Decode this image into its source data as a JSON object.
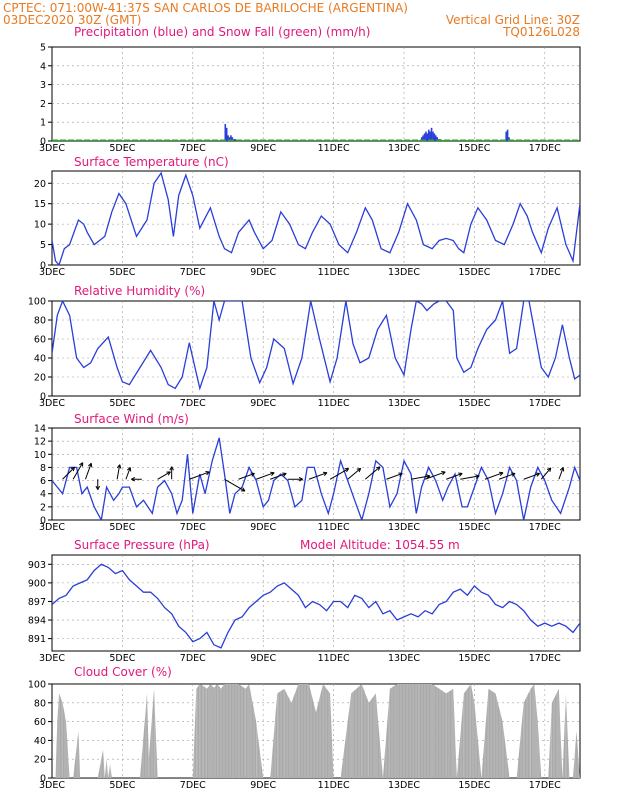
{
  "header": {
    "line1_left": "CPTEC:   071:00W-41:37S   SAN CARLOS DE BARILOCHE (ARGENTINA)",
    "line2_left": "03DEC2020 30Z (GMT)",
    "line2_right": "Vertical Grid Line: 30Z",
    "line3_right": "TQ0126L028"
  },
  "colors": {
    "header": "#e87a22",
    "panel_title": "#e0187a",
    "line": "#2a3ed8",
    "snow": "#22aa22",
    "cloud": "#aaaaaa",
    "grid": "#999999"
  },
  "x_axis": {
    "labels": [
      "3DEC",
      "5DEC",
      "7DEC",
      "9DEC",
      "11DEC",
      "13DEC",
      "15DEC",
      "17DEC"
    ],
    "start_day": 3,
    "end_day": 18
  },
  "chart_data": [
    {
      "type": "bar",
      "title": "Precipitation (blue) and Snow Fall (green) (mm/h)",
      "ylim": [
        0,
        5
      ],
      "yticks": [
        0,
        1,
        2,
        3,
        4,
        5
      ],
      "series": [
        {
          "name": "Precipitation (blue)",
          "color": "#2a3ed8",
          "x": [
            7.92,
            7.96,
            8.0,
            8.04,
            8.08,
            8.12,
            8.16,
            8.2,
            13.5,
            13.54,
            13.58,
            13.62,
            13.66,
            13.7,
            13.74,
            13.78,
            13.82,
            13.86,
            13.9,
            13.94,
            13.98,
            14.02,
            15.9,
            15.94,
            15.98
          ],
          "values": [
            0.9,
            0.7,
            0.3,
            0.2,
            0.3,
            0.2,
            0.1,
            0.1,
            0.2,
            0.3,
            0.4,
            0.5,
            0.4,
            0.6,
            0.5,
            0.7,
            0.5,
            0.4,
            0.3,
            0.2,
            0.1,
            0.1,
            0.5,
            0.6,
            0.2
          ]
        },
        {
          "name": "Snow Fall (green)",
          "color": "#22aa22",
          "x": [
            3.2,
            3.6,
            4.0,
            4.4,
            6.0,
            6.4,
            7.8,
            8.3,
            9.5,
            10.6,
            12.0,
            13.4,
            14.1,
            14.8,
            15.6,
            16.4
          ],
          "values": [
            0.05,
            0.05,
            0.05,
            0.05,
            0.05,
            0.05,
            0.05,
            0.05,
            0.05,
            0.05,
            0.05,
            0.05,
            0.05,
            0.05,
            0.05,
            0.05
          ]
        }
      ]
    },
    {
      "type": "line",
      "title": "Surface Temperature (nC)",
      "ylim": [
        0,
        23
      ],
      "yticks": [
        0,
        5,
        10,
        15,
        20
      ],
      "x": [
        3.0,
        3.1,
        3.2,
        3.35,
        3.5,
        3.75,
        3.9,
        4.0,
        4.2,
        4.5,
        4.7,
        4.9,
        5.1,
        5.4,
        5.7,
        5.9,
        6.1,
        6.3,
        6.45,
        6.6,
        6.8,
        7.0,
        7.2,
        7.5,
        7.75,
        7.9,
        8.1,
        8.3,
        8.6,
        8.75,
        9.0,
        9.25,
        9.5,
        9.75,
        10.0,
        10.2,
        10.4,
        10.65,
        10.9,
        11.15,
        11.4,
        11.65,
        11.9,
        12.1,
        12.35,
        12.6,
        12.85,
        13.1,
        13.35,
        13.55,
        13.8,
        14.0,
        14.2,
        14.4,
        14.55,
        14.7,
        14.9,
        15.1,
        15.35,
        15.6,
        15.85,
        16.1,
        16.3,
        16.5,
        16.65,
        16.9,
        17.1,
        17.35,
        17.6,
        17.8,
        18.0
      ],
      "values": [
        6,
        1,
        -1,
        4,
        5,
        11,
        10,
        8,
        5,
        7,
        13,
        17.5,
        15,
        7,
        11,
        20,
        22.5,
        16,
        7,
        17,
        22,
        17,
        9,
        14,
        7,
        4,
        3,
        8,
        11,
        8,
        4,
        6,
        13,
        10,
        5,
        4,
        8,
        12,
        10,
        5,
        3,
        8,
        14,
        11,
        4,
        3,
        8,
        15,
        11,
        5,
        4,
        6,
        6.5,
        6,
        4,
        3,
        10,
        14,
        11,
        6,
        5,
        10,
        15,
        12,
        8,
        3,
        9,
        14,
        5,
        1,
        15
      ]
    },
    {
      "type": "line",
      "title": "Relative Humidity (%)",
      "ylim": [
        0,
        100
      ],
      "yticks": [
        0,
        20,
        40,
        60,
        80,
        100
      ],
      "x": [
        3.0,
        3.15,
        3.3,
        3.5,
        3.7,
        3.9,
        4.1,
        4.3,
        4.6,
        4.85,
        5.0,
        5.2,
        5.5,
        5.8,
        6.1,
        6.3,
        6.5,
        6.7,
        6.9,
        7.0,
        7.2,
        7.4,
        7.6,
        7.75,
        7.9,
        8.1,
        8.4,
        8.65,
        8.9,
        9.1,
        9.3,
        9.6,
        9.85,
        10.1,
        10.35,
        10.6,
        10.9,
        11.1,
        11.35,
        11.55,
        11.75,
        12.0,
        12.25,
        12.5,
        12.75,
        13.0,
        13.2,
        13.35,
        13.5,
        13.65,
        13.85,
        14.0,
        14.2,
        14.4,
        14.5,
        14.7,
        14.9,
        15.1,
        15.35,
        15.6,
        15.8,
        16.0,
        16.2,
        16.4,
        16.55,
        16.75,
        16.9,
        17.1,
        17.3,
        17.5,
        17.7,
        17.85,
        18.0
      ],
      "values": [
        45,
        85,
        100,
        85,
        40,
        30,
        35,
        50,
        62,
        30,
        15,
        12,
        30,
        48,
        30,
        12,
        8,
        20,
        56,
        40,
        8,
        30,
        100,
        80,
        100,
        100,
        100,
        40,
        14,
        30,
        60,
        50,
        13,
        40,
        100,
        60,
        15,
        40,
        100,
        55,
        35,
        40,
        70,
        85,
        40,
        22,
        70,
        100,
        97,
        90,
        97,
        100,
        100,
        90,
        40,
        25,
        30,
        50,
        70,
        80,
        100,
        45,
        50,
        100,
        100,
        60,
        30,
        20,
        40,
        75,
        40,
        18,
        22
      ]
    },
    {
      "type": "line",
      "title": "Surface Wind (m/s)",
      "ylim": [
        0,
        14
      ],
      "yticks": [
        0,
        2,
        4,
        6,
        8,
        10,
        12,
        14
      ],
      "x": [
        3.0,
        3.15,
        3.3,
        3.5,
        3.7,
        3.85,
        4.0,
        4.2,
        4.4,
        4.55,
        4.75,
        4.9,
        5.0,
        5.2,
        5.4,
        5.6,
        5.85,
        6.0,
        6.2,
        6.4,
        6.55,
        6.7,
        6.85,
        7.0,
        7.2,
        7.35,
        7.55,
        7.75,
        7.9,
        8.05,
        8.2,
        8.4,
        8.6,
        8.8,
        9.0,
        9.15,
        9.3,
        9.5,
        9.7,
        9.9,
        10.1,
        10.25,
        10.45,
        10.65,
        10.85,
        11.0,
        11.2,
        11.4,
        11.6,
        11.8,
        12.0,
        12.2,
        12.4,
        12.6,
        12.8,
        13.0,
        13.2,
        13.35,
        13.5,
        13.7,
        13.9,
        14.1,
        14.25,
        14.45,
        14.65,
        14.8,
        15.0,
        15.2,
        15.4,
        15.6,
        15.8,
        16.0,
        16.2,
        16.4,
        16.6,
        16.8,
        17.0,
        17.2,
        17.45,
        17.7,
        17.85,
        18.0
      ],
      "values": [
        6,
        5,
        4,
        8,
        8,
        4,
        5,
        2,
        0,
        5,
        3,
        4,
        5,
        5,
        2,
        3,
        1,
        5,
        6,
        4,
        1,
        3,
        10,
        1,
        7,
        4,
        9,
        12.5,
        7,
        1,
        4,
        5,
        8,
        6,
        2,
        3,
        6,
        7,
        6,
        2,
        3,
        8,
        8,
        4,
        1,
        4,
        9,
        6,
        3,
        0,
        4,
        9,
        8,
        2,
        4,
        9,
        7,
        1,
        5,
        8,
        6,
        3,
        5,
        7,
        2,
        2,
        5,
        8,
        6,
        1,
        4,
        8,
        6,
        0,
        5,
        8,
        6,
        3,
        1,
        5,
        8,
        6
      ]
    },
    {
      "type": "line",
      "title": "Surface Pressure (hPa)",
      "annotation": "Model Altitude: 1054.55  m",
      "ylim": [
        889,
        904.5
      ],
      "yticks": [
        891,
        894,
        897,
        900,
        903
      ],
      "x": [
        3.0,
        3.2,
        3.4,
        3.6,
        3.8,
        4.0,
        4.2,
        4.4,
        4.6,
        4.8,
        5.0,
        5.2,
        5.4,
        5.6,
        5.8,
        6.0,
        6.2,
        6.4,
        6.6,
        6.8,
        7.0,
        7.2,
        7.4,
        7.6,
        7.8,
        8.0,
        8.2,
        8.4,
        8.6,
        8.8,
        9.0,
        9.2,
        9.4,
        9.6,
        9.8,
        10.0,
        10.2,
        10.4,
        10.6,
        10.8,
        11.0,
        11.2,
        11.4,
        11.6,
        11.8,
        12.0,
        12.2,
        12.4,
        12.6,
        12.8,
        13.0,
        13.2,
        13.4,
        13.6,
        13.8,
        14.0,
        14.2,
        14.4,
        14.6,
        14.8,
        15.0,
        15.2,
        15.4,
        15.6,
        15.8,
        16.0,
        16.2,
        16.4,
        16.6,
        16.8,
        17.0,
        17.2,
        17.4,
        17.6,
        17.8,
        18.0
      ],
      "values": [
        896.5,
        897.5,
        898,
        899.5,
        900,
        900.5,
        902,
        903,
        902.5,
        901.5,
        902,
        900.5,
        899.5,
        898.5,
        898.5,
        897.5,
        896,
        895,
        893,
        892,
        890.5,
        891,
        892,
        890,
        889.5,
        892,
        894,
        894.5,
        896,
        897,
        898,
        898.5,
        899.5,
        900,
        899,
        898,
        896,
        897,
        896.5,
        895.5,
        897,
        897,
        896,
        898,
        897.5,
        896,
        897,
        895,
        895.5,
        894,
        894.5,
        895,
        894.5,
        895.5,
        895,
        896.5,
        897,
        898.5,
        899,
        898,
        899.5,
        898.5,
        898,
        896.5,
        896,
        897,
        896.5,
        895.5,
        894,
        893,
        893.5,
        893,
        893.5,
        893,
        892,
        893.5
      ]
    },
    {
      "type": "area",
      "title": "Cloud Cover (%)",
      "ylim": [
        0,
        100
      ],
      "yticks": [
        0,
        20,
        40,
        60,
        80,
        100
      ],
      "x": [
        3.0,
        3.1,
        3.15,
        3.2,
        3.3,
        3.4,
        3.5,
        3.6,
        3.75,
        3.8,
        4.0,
        4.3,
        4.45,
        4.5,
        4.55,
        4.6,
        4.65,
        4.7,
        5.0,
        5.5,
        5.7,
        5.75,
        5.9,
        6.0,
        6.5,
        7.0,
        7.1,
        7.2,
        7.3,
        7.4,
        7.5,
        7.6,
        7.7,
        7.8,
        7.9,
        8.0,
        8.3,
        8.5,
        8.6,
        8.8,
        9.0,
        9.2,
        9.4,
        9.6,
        9.8,
        10.0,
        10.3,
        10.5,
        10.7,
        10.9,
        11.0,
        11.2,
        11.5,
        11.8,
        12.0,
        12.2,
        12.4,
        12.6,
        12.8,
        13.0,
        13.4,
        13.8,
        14.2,
        14.4,
        14.5,
        14.7,
        14.9,
        15.0,
        15.2,
        15.4,
        15.6,
        15.8,
        16.0,
        16.2,
        16.4,
        16.6,
        16.7,
        16.8,
        16.9,
        17.0,
        17.1,
        17.2,
        17.4,
        17.5,
        17.6,
        17.7,
        17.8,
        17.9,
        18.0
      ],
      "values": [
        0,
        0,
        60,
        90,
        80,
        60,
        0,
        0,
        50,
        0,
        0,
        0,
        30,
        0,
        20,
        0,
        15,
        0,
        0,
        0,
        90,
        20,
        95,
        0,
        0,
        0,
        95,
        100,
        98,
        95,
        100,
        96,
        100,
        95,
        100,
        100,
        100,
        95,
        100,
        60,
        0,
        0,
        90,
        95,
        80,
        100,
        100,
        70,
        100,
        90,
        0,
        0,
        90,
        100,
        80,
        90,
        0,
        95,
        100,
        100,
        100,
        100,
        90,
        95,
        0,
        90,
        100,
        80,
        0,
        95,
        90,
        60,
        0,
        0,
        80,
        95,
        100,
        60,
        0,
        0,
        0,
        80,
        95,
        0,
        90,
        0,
        0,
        50,
        0
      ]
    }
  ],
  "wind_arrows": {
    "x": [
      3.3,
      3.6,
      3.95,
      4.3,
      4.85,
      5.1,
      5.55,
      6.0,
      6.4,
      6.9,
      7.9,
      8.3,
      8.8,
      9.2,
      9.7,
      10.3,
      10.9,
      11.4,
      11.9,
      12.5,
      13.2,
      13.6,
      14.2,
      14.6,
      15.3,
      15.7,
      16.4,
      16.9,
      17.4
    ],
    "speed": [
      5,
      6,
      5,
      2,
      4,
      3,
      2,
      4,
      3,
      7,
      8,
      5,
      6,
      5,
      4,
      6,
      7,
      5,
      6,
      5,
      6,
      7,
      5,
      6,
      6,
      5,
      5,
      4,
      3
    ],
    "dir_deg": [
      225,
      210,
      200,
      0,
      190,
      200,
      90,
      240,
      180,
      250,
      300,
      250,
      250,
      250,
      270,
      250,
      240,
      230,
      230,
      250,
      260,
      250,
      250,
      260,
      250,
      250,
      250,
      220,
      200
    ]
  }
}
